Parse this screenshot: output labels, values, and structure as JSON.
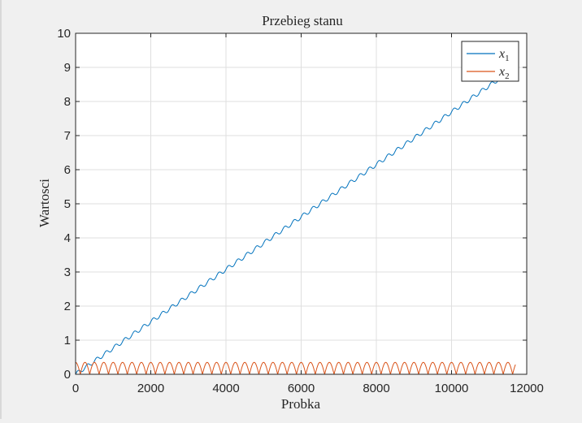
{
  "chart_data": {
    "type": "line",
    "title": "Przebieg stanu",
    "xlabel": "Probka",
    "ylabel": "Wartosci",
    "xlim": [
      0,
      12000
    ],
    "ylim": [
      0,
      10
    ],
    "xticks": [
      0,
      2000,
      4000,
      6000,
      8000,
      10000,
      12000
    ],
    "yticks": [
      0,
      1,
      2,
      3,
      4,
      5,
      6,
      7,
      8,
      9,
      10
    ],
    "grid": true,
    "legend_position": "top-right",
    "series": [
      {
        "name": "x1",
        "legend_main": "x",
        "legend_sub": "1",
        "color": "#0072bd",
        "trend": {
          "x": [
            0,
            11700
          ],
          "y": [
            0,
            9.0
          ]
        },
        "ripple_period": 250,
        "ripple_amplitude": 0.06
      },
      {
        "name": "x2",
        "legend_main": "x",
        "legend_sub": "2",
        "color": "#d95319",
        "oscillation": {
          "x_range": [
            0,
            11700
          ],
          "min": 0.0,
          "max": 0.35,
          "period": 250
        }
      }
    ]
  }
}
